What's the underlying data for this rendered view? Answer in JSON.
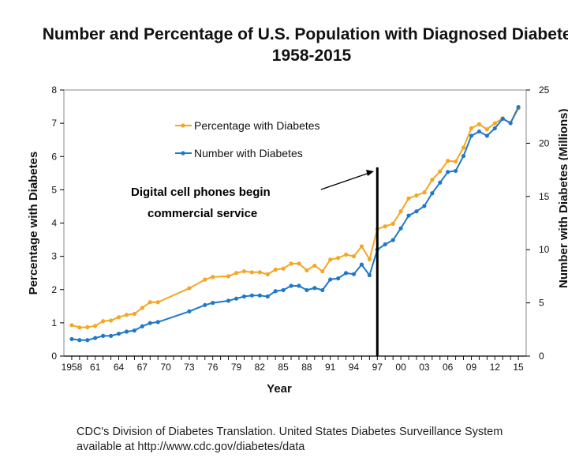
{
  "chart_data": {
    "type": "line",
    "title": "Number and Percentage of U.S. Population with Diagnosed Diabetes",
    "subtitle": "1958-2015",
    "xlabel": "Year",
    "ylabel_left": "Percentage with Diabetes",
    "ylabel_right": "Number with Diabetes (Millions)",
    "left_ylim": [
      0,
      8
    ],
    "right_ylim": [
      0,
      25
    ],
    "left_ticks": [
      "0",
      "1",
      "2",
      "3",
      "4",
      "5",
      "6",
      "7",
      "8"
    ],
    "right_ticks": [
      "0",
      "5",
      "10",
      "15",
      "20",
      "25"
    ],
    "x_tick_labels": [
      "1958",
      "61",
      "64",
      "67",
      "70",
      "73",
      "76",
      "79",
      "82",
      "85",
      "88",
      "91",
      "94",
      "97",
      "00",
      "03",
      "06",
      "09",
      "12",
      "15"
    ],
    "legend": [
      "Percentage with Diabetes",
      "Number with Diabetes"
    ],
    "colors": {
      "percentage": "#F5A623",
      "number": "#1F78C8",
      "axis": "#000000"
    },
    "annotation": {
      "text_line1": "Digital cell phones begin",
      "text_line2": "commercial service",
      "marker_year": 1997
    },
    "series": [
      {
        "name": "Percentage with Diabetes",
        "axis": "left",
        "points": [
          [
            1958,
            0.93
          ],
          [
            1959,
            0.86
          ],
          [
            1960,
            0.87
          ],
          [
            1961,
            0.91
          ],
          [
            1962,
            1.05
          ],
          [
            1963,
            1.07
          ],
          [
            1964,
            1.17
          ],
          [
            1965,
            1.24
          ],
          [
            1966,
            1.27
          ],
          [
            1967,
            1.45
          ],
          [
            1968,
            1.62
          ],
          [
            1969,
            1.62
          ],
          [
            1973,
            2.04
          ],
          [
            1975,
            2.3
          ],
          [
            1976,
            2.38
          ],
          [
            1978,
            2.4
          ],
          [
            1979,
            2.5
          ],
          [
            1980,
            2.55
          ],
          [
            1981,
            2.52
          ],
          [
            1982,
            2.52
          ],
          [
            1983,
            2.46
          ],
          [
            1984,
            2.6
          ],
          [
            1985,
            2.63
          ],
          [
            1986,
            2.78
          ],
          [
            1987,
            2.78
          ],
          [
            1988,
            2.58
          ],
          [
            1989,
            2.72
          ],
          [
            1990,
            2.55
          ],
          [
            1991,
            2.9
          ],
          [
            1992,
            2.95
          ],
          [
            1993,
            3.05
          ],
          [
            1994,
            3.0
          ],
          [
            1995,
            3.3
          ],
          [
            1996,
            2.91
          ],
          [
            1997,
            3.82
          ],
          [
            1998,
            3.9
          ],
          [
            1999,
            3.98
          ],
          [
            2000,
            4.35
          ],
          [
            2001,
            4.74
          ],
          [
            2002,
            4.83
          ],
          [
            2003,
            4.92
          ],
          [
            2004,
            5.3
          ],
          [
            2005,
            5.55
          ],
          [
            2006,
            5.87
          ],
          [
            2007,
            5.85
          ],
          [
            2008,
            6.27
          ],
          [
            2009,
            6.85
          ],
          [
            2010,
            6.97
          ],
          [
            2011,
            6.82
          ],
          [
            2012,
            7.0
          ],
          [
            2013,
            7.15
          ],
          [
            2014,
            7.0
          ],
          [
            2015,
            7.45
          ]
        ]
      },
      {
        "name": "Number with Diabetes",
        "axis": "right",
        "points": [
          [
            1958,
            1.6
          ],
          [
            1959,
            1.5
          ],
          [
            1960,
            1.5
          ],
          [
            1961,
            1.7
          ],
          [
            1962,
            1.9
          ],
          [
            1963,
            1.9
          ],
          [
            1964,
            2.1
          ],
          [
            1965,
            2.3
          ],
          [
            1966,
            2.4
          ],
          [
            1967,
            2.8
          ],
          [
            1968,
            3.1
          ],
          [
            1969,
            3.2
          ],
          [
            1973,
            4.2
          ],
          [
            1975,
            4.8
          ],
          [
            1976,
            5.0
          ],
          [
            1978,
            5.2
          ],
          [
            1979,
            5.4
          ],
          [
            1980,
            5.6
          ],
          [
            1981,
            5.7
          ],
          [
            1982,
            5.7
          ],
          [
            1983,
            5.6
          ],
          [
            1984,
            6.1
          ],
          [
            1985,
            6.2
          ],
          [
            1986,
            6.6
          ],
          [
            1987,
            6.6
          ],
          [
            1988,
            6.2
          ],
          [
            1989,
            6.4
          ],
          [
            1990,
            6.2
          ],
          [
            1991,
            7.2
          ],
          [
            1992,
            7.3
          ],
          [
            1993,
            7.8
          ],
          [
            1994,
            7.7
          ],
          [
            1995,
            8.6
          ],
          [
            1996,
            7.6
          ],
          [
            1997,
            10.0
          ],
          [
            1998,
            10.5
          ],
          [
            1999,
            10.9
          ],
          [
            2000,
            12.0
          ],
          [
            2001,
            13.2
          ],
          [
            2002,
            13.6
          ],
          [
            2003,
            14.1
          ],
          [
            2004,
            15.3
          ],
          [
            2005,
            16.3
          ],
          [
            2006,
            17.3
          ],
          [
            2007,
            17.4
          ],
          [
            2008,
            18.8
          ],
          [
            2009,
            20.7
          ],
          [
            2010,
            21.1
          ],
          [
            2011,
            20.7
          ],
          [
            2012,
            21.4
          ],
          [
            2013,
            22.3
          ],
          [
            2014,
            21.9
          ],
          [
            2015,
            23.4
          ]
        ]
      }
    ]
  },
  "footer": {
    "line1": "CDC's Division of Diabetes Translation. United States Diabetes Surveillance System",
    "line2": "available at http://www.cdc.gov/diabetes/data"
  }
}
